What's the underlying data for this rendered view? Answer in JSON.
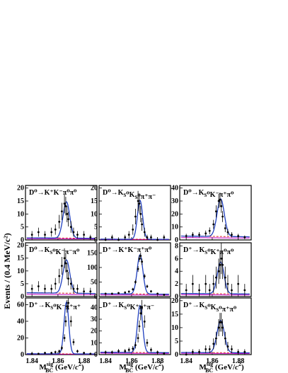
{
  "figure": {
    "ylabel": "Events / (0.4 MeV/c²)",
    "xlabel": "M_BC^sig (GeV/c²)"
  },
  "chart_data": [
    {
      "type": "scatter",
      "title": "D⁰→K⁺K⁻π⁰π⁰",
      "xlim": [
        1.835,
        1.89
      ],
      "ylim": [
        0,
        21
      ],
      "yticks": [
        0,
        5,
        10,
        15,
        20
      ],
      "xticks": [
        1.84,
        1.86,
        1.88
      ],
      "series": [
        {
          "name": "data",
          "x": [
            1.84,
            1.845,
            1.85,
            1.855,
            1.858,
            1.861,
            1.863,
            1.865,
            1.866,
            1.867,
            1.868,
            1.87,
            1.872,
            1.875,
            1.88,
            1.885
          ],
          "y": [
            2,
            3,
            2,
            3,
            4,
            7,
            11,
            14,
            13,
            10,
            8,
            5,
            3,
            2,
            2,
            1
          ]
        }
      ],
      "peak": 14,
      "width": 0.0026,
      "background": 0.8
    },
    {
      "type": "scatter",
      "title": "D⁰→K_S⁰K_S⁰π⁺π⁻",
      "xlim": [
        1.835,
        1.89
      ],
      "ylim": [
        0,
        21
      ],
      "yticks": [
        0,
        5,
        10,
        15,
        20
      ],
      "xticks": [
        1.84,
        1.86,
        1.88
      ],
      "series": [
        {
          "name": "data",
          "x": [
            1.84,
            1.845,
            1.85,
            1.855,
            1.858,
            1.861,
            1.863,
            1.865,
            1.866,
            1.867,
            1.868,
            1.87,
            1.872,
            1.875,
            1.88,
            1.885
          ],
          "y": [
            0,
            1,
            0,
            1,
            2,
            4,
            9,
            15,
            14,
            10,
            6,
            3,
            1,
            1,
            0,
            1
          ]
        }
      ],
      "peak": 15,
      "width": 0.002,
      "background": 0.3
    },
    {
      "type": "scatter",
      "title": "D⁰→K_S⁰K⁻π⁺π⁰",
      "xlim": [
        1.835,
        1.89
      ],
      "ylim": [
        0,
        42
      ],
      "yticks": [
        0,
        10,
        20,
        30,
        40
      ],
      "xticks": [
        1.84,
        1.86,
        1.88
      ],
      "series": [
        {
          "name": "data",
          "x": [
            1.84,
            1.845,
            1.85,
            1.855,
            1.858,
            1.861,
            1.863,
            1.865,
            1.866,
            1.867,
            1.868,
            1.87,
            1.872,
            1.875,
            1.88,
            1.885
          ],
          "y": [
            3,
            4,
            4,
            5,
            7,
            12,
            22,
            30,
            31,
            26,
            18,
            9,
            6,
            4,
            3,
            2
          ]
        }
      ],
      "peak": 29,
      "width": 0.0028,
      "background": 3
    },
    {
      "type": "scatter",
      "title": "D⁰→K_S⁰K⁻π⁻π⁰",
      "xlim": [
        1.835,
        1.89
      ],
      "ylim": [
        0,
        21
      ],
      "yticks": [
        0,
        5,
        10,
        15,
        20
      ],
      "xticks": [
        1.84,
        1.86,
        1.88
      ],
      "series": [
        {
          "name": "data",
          "x": [
            1.84,
            1.845,
            1.85,
            1.855,
            1.858,
            1.861,
            1.863,
            1.865,
            1.866,
            1.867,
            1.868,
            1.87,
            1.872,
            1.875,
            1.88,
            1.885
          ],
          "y": [
            3,
            4,
            3,
            3,
            5,
            8,
            12,
            15,
            13,
            10,
            7,
            5,
            3,
            3,
            2,
            2
          ]
        }
      ],
      "peak": 13,
      "width": 0.0026,
      "background": 1.5
    },
    {
      "type": "scatter",
      "title": "D⁺→K⁺K⁻π⁺π⁰",
      "xlim": [
        1.835,
        1.89
      ],
      "ylim": [
        0,
        185
      ],
      "yticks": [
        0,
        50,
        100,
        150
      ],
      "xticks": [
        1.84,
        1.86,
        1.88
      ],
      "series": [
        {
          "name": "data",
          "x": [
            1.84,
            1.845,
            1.85,
            1.855,
            1.858,
            1.861,
            1.863,
            1.865,
            1.866,
            1.867,
            1.868,
            1.87,
            1.872,
            1.875,
            1.88,
            1.885
          ],
          "y": [
            10,
            10,
            12,
            14,
            17,
            25,
            50,
            95,
            130,
            140,
            120,
            70,
            35,
            18,
            10,
            6
          ]
        }
      ],
      "peak": 135,
      "width": 0.0022,
      "background": 10
    },
    {
      "type": "scatter",
      "title": "D⁺→K_S⁰K⁺π⁰π⁰",
      "xlim": [
        1.835,
        1.89
      ],
      "ylim": [
        0,
        8.5
      ],
      "yticks": [
        0,
        2,
        4,
        6,
        8
      ],
      "xticks": [
        1.84,
        1.86,
        1.88
      ],
      "series": [
        {
          "name": "data",
          "x": [
            1.84,
            1.845,
            1.85,
            1.855,
            1.858,
            1.861,
            1.863,
            1.865,
            1.866,
            1.867,
            1.868,
            1.87,
            1.872,
            1.875,
            1.88,
            1.885
          ],
          "y": [
            1,
            2,
            1,
            2,
            1,
            2,
            3,
            4,
            5,
            6,
            5,
            3,
            2,
            1,
            2,
            1
          ]
        }
      ],
      "peak": 5,
      "width": 0.0026,
      "background": 0.5
    },
    {
      "type": "scatter",
      "title": "D⁺→K_S⁰K⁻π⁺π⁺",
      "xlim": [
        1.835,
        1.89
      ],
      "ylim": [
        0,
        68
      ],
      "yticks": [
        0,
        20,
        40,
        60
      ],
      "xticks": [
        1.84,
        1.86,
        1.88
      ],
      "series": [
        {
          "name": "data",
          "x": [
            1.84,
            1.845,
            1.85,
            1.855,
            1.858,
            1.861,
            1.863,
            1.865,
            1.866,
            1.867,
            1.868,
            1.87,
            1.872,
            1.875,
            1.88,
            1.885
          ],
          "y": [
            1,
            1,
            2,
            2,
            3,
            4,
            8,
            20,
            40,
            58,
            62,
            40,
            15,
            4,
            2,
            1
          ]
        }
      ],
      "peak": 62,
      "width": 0.0018,
      "background": 1
    },
    {
      "type": "scatter",
      "title": "D⁺→K_S⁰K⁺π⁺π⁻",
      "xlim": [
        1.835,
        1.89
      ],
      "ylim": [
        0,
        48
      ],
      "yticks": [
        0,
        10,
        20,
        30,
        40
      ],
      "xticks": [
        1.84,
        1.86,
        1.88
      ],
      "series": [
        {
          "name": "data",
          "x": [
            1.84,
            1.845,
            1.85,
            1.855,
            1.858,
            1.861,
            1.863,
            1.865,
            1.866,
            1.867,
            1.868,
            1.87,
            1.872,
            1.875,
            1.88,
            1.885
          ],
          "y": [
            2,
            2,
            3,
            3,
            4,
            5,
            8,
            14,
            24,
            35,
            40,
            28,
            10,
            4,
            2,
            1
          ]
        }
      ],
      "peak": 40,
      "width": 0.002,
      "background": 2
    },
    {
      "type": "scatter",
      "title": "D⁺→K_S⁰K_S⁰π⁺π⁰",
      "xlim": [
        1.835,
        1.89
      ],
      "ylim": [
        0,
        21
      ],
      "yticks": [
        0,
        5,
        10,
        15,
        20
      ],
      "xticks": [
        1.84,
        1.86,
        1.88
      ],
      "series": [
        {
          "name": "data",
          "x": [
            1.84,
            1.845,
            1.85,
            1.855,
            1.858,
            1.861,
            1.863,
            1.865,
            1.866,
            1.867,
            1.868,
            1.87,
            1.872,
            1.875,
            1.88,
            1.885
          ],
          "y": [
            0,
            1,
            1,
            2,
            2,
            4,
            6,
            10,
            12,
            12,
            10,
            6,
            3,
            2,
            1,
            1
          ]
        }
      ],
      "peak": 12,
      "width": 0.0028,
      "background": 0.8
    }
  ],
  "colors": {
    "data": "#000000",
    "fit": "#1f3fbf",
    "background": "#d62020",
    "peaking": "#c000c0"
  }
}
